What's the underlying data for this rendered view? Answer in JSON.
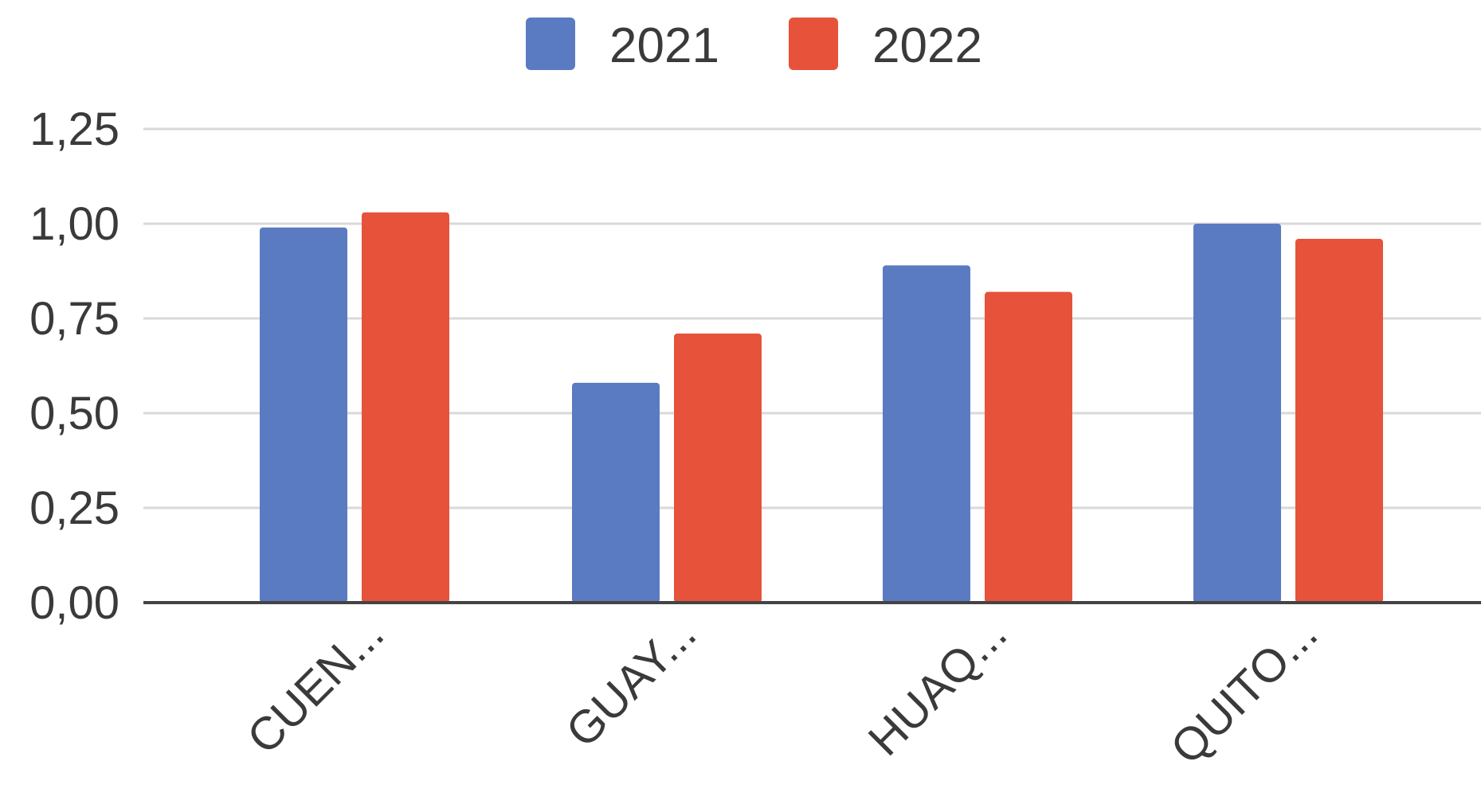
{
  "chart_data": {
    "type": "bar",
    "categories": [
      "CUEN...",
      "GUAY...",
      "HUAQ...",
      "QUITO..."
    ],
    "series": [
      {
        "name": "2021",
        "color": "#5a7bc1",
        "values": [
          0.99,
          0.58,
          0.89,
          1.0
        ]
      },
      {
        "name": "2022",
        "color": "#e6533a",
        "values": [
          1.03,
          0.71,
          0.82,
          0.96
        ]
      }
    ],
    "y_ticks": [
      "0,00",
      "0,25",
      "0,50",
      "0,75",
      "1,00",
      "1,25"
    ],
    "y_tick_values": [
      0,
      0.25,
      0.5,
      0.75,
      1.0,
      1.25
    ],
    "ylim": [
      0,
      1.25
    ],
    "grid": true,
    "legend_position": "top-center",
    "title": "",
    "xlabel": "",
    "ylabel": ""
  }
}
